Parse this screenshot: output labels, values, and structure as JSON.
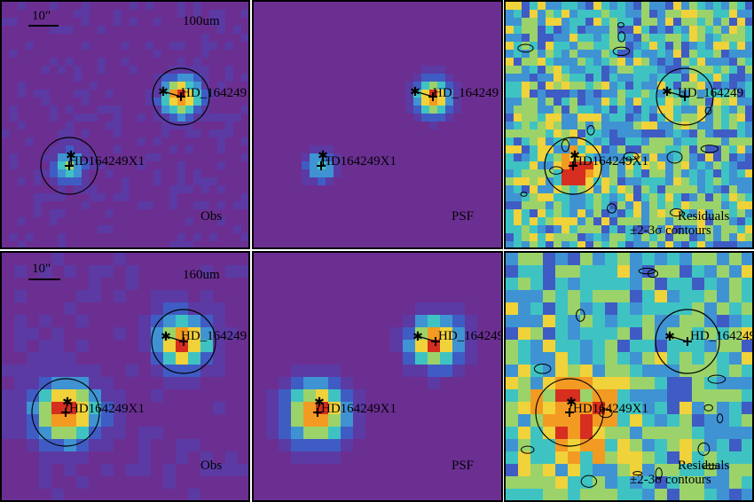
{
  "rows": [
    {
      "band": "100um",
      "scale_label": "10\"",
      "panels": [
        {
          "kind": "obs",
          "label": "Obs",
          "background": "#6b2f92"
        },
        {
          "kind": "psf",
          "label": "PSF",
          "background": "#6a2d91"
        },
        {
          "kind": "residual",
          "label_line1": "Residuals",
          "label_line2": "±2-3σ contours",
          "background": "#4f9bd1"
        }
      ],
      "sources": [
        {
          "name": "HD_164249",
          "peak": "#d63a1e"
        },
        {
          "name": "HD164249X1",
          "peak": "#2fb7c6"
        }
      ]
    },
    {
      "band": "160um",
      "scale_label": "10\"",
      "panels": [
        {
          "kind": "obs",
          "label": "Obs",
          "background": "#6a2f90"
        },
        {
          "kind": "psf",
          "label": "PSF",
          "background": "#6b2f92"
        },
        {
          "kind": "residual",
          "label_line1": "Residuals",
          "label_line2": "±2-3σ contours",
          "background": "#4fa2d6"
        }
      ],
      "sources": [
        {
          "name": "HD_164249",
          "peak": "#e3481c"
        },
        {
          "name": "HD164249X1",
          "peak": "#e0281d"
        }
      ]
    }
  ],
  "colors": {
    "colormap": [
      "#6b2f92",
      "#5b3aa3",
      "#3f5cc4",
      "#3f93d3",
      "#3fc3c2",
      "#9bd36a",
      "#f0d23a",
      "#f39a22",
      "#d62e1f"
    ]
  }
}
